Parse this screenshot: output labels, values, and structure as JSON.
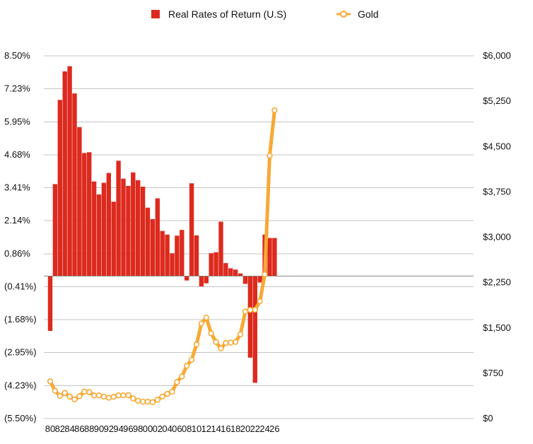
{
  "chart_data": {
    "type": "bar+line",
    "legend": {
      "placement": "top-center",
      "entries": [
        {
          "label": "Real Rates of Return (U.S)",
          "kind": "bar",
          "color": "#dd2a1e"
        },
        {
          "label": "Gold",
          "kind": "line",
          "color": "#f7a934"
        }
      ]
    },
    "x_tick_labels": [
      "80",
      "82",
      "84",
      "86",
      "88",
      "90",
      "92",
      "94",
      "96",
      "98",
      "00",
      "02",
      "04",
      "06",
      "08",
      "10",
      "12",
      "14",
      "16",
      "18",
      "20",
      "22",
      "24",
      "26"
    ],
    "left_axis": {
      "ticks": [
        8.5,
        7.23,
        5.95,
        4.68,
        3.41,
        2.14,
        0.86,
        -0.41,
        -1.68,
        -2.95,
        -4.23,
        -5.5
      ],
      "tick_labels": [
        "8.50%",
        "7.23%",
        "5.95%",
        "4.68%",
        "3.41%",
        "2.14%",
        "0.86%",
        "(0.41%)",
        "(1.68%)",
        "(2.95%)",
        "(4.23%)",
        "(5.50%)"
      ],
      "ylim": [
        -5.5,
        8.5
      ]
    },
    "right_axis": {
      "ticks": [
        6000,
        5250,
        4500,
        3750,
        3000,
        2250,
        1500,
        750,
        0
      ],
      "tick_labels": [
        "$6,000",
        "$5,250",
        "$4,500",
        "$3,750",
        "$3,000",
        "$2,250",
        "$1,500",
        "$750",
        "$0"
      ],
      "ylim": [
        0,
        6000
      ]
    },
    "grid": "horizontal",
    "series": [
      {
        "name": "Real Rates of Return (U.S)",
        "axis": "left",
        "type": "bar",
        "color": "#dd2a1e",
        "x": [
          1980,
          1981,
          1982,
          1983,
          1984,
          1985,
          1986,
          1987,
          1988,
          1989,
          1990,
          1991,
          1992,
          1993,
          1994,
          1995,
          1996,
          1997,
          1998,
          1999,
          2000,
          2001,
          2002,
          2003,
          2004,
          2005,
          2006,
          2007,
          2008,
          2009,
          2010,
          2011,
          2012,
          2013,
          2014,
          2015,
          2016,
          2017,
          2018,
          2019,
          2020,
          2021,
          2022,
          2023,
          2024,
          2025,
          2026
        ],
        "values": [
          -2.12,
          3.55,
          6.8,
          7.9,
          8.1,
          7.05,
          5.75,
          4.75,
          4.78,
          3.65,
          3.15,
          3.6,
          3.98,
          2.87,
          4.45,
          3.76,
          3.48,
          4.0,
          3.7,
          3.45,
          2.64,
          2.2,
          3.0,
          1.74,
          1.6,
          0.88,
          1.56,
          1.78,
          -0.17,
          3.58,
          1.57,
          -0.4,
          -0.28,
          0.88,
          0.92,
          2.1,
          0.5,
          0.3,
          0.25,
          0.1,
          -0.3,
          -3.15,
          -4.12,
          -0.25,
          1.6,
          1.47,
          1.47
        ]
      },
      {
        "name": "Gold",
        "axis": "right",
        "type": "line",
        "color": "#f7a934",
        "x": [
          1980,
          1981,
          1982,
          1983,
          1984,
          1985,
          1986,
          1987,
          1988,
          1989,
          1990,
          1991,
          1992,
          1993,
          1994,
          1995,
          1996,
          1997,
          1998,
          1999,
          2000,
          2001,
          2002,
          2003,
          2004,
          2005,
          2006,
          2007,
          2008,
          2009,
          2010,
          2011,
          2012,
          2013,
          2014,
          2015,
          2016,
          2017,
          2018,
          2019,
          2020,
          2021,
          2022,
          2023,
          2024,
          2025,
          2026
        ],
        "values": [
          615,
          460,
          375,
          424,
          361,
          317,
          368,
          447,
          437,
          381,
          383,
          362,
          344,
          360,
          384,
          384,
          388,
          331,
          294,
          279,
          279,
          271,
          310,
          363,
          409,
          444,
          604,
          696,
          872,
          972,
          1225,
          1572,
          1669,
          1411,
          1266,
          1160,
          1250,
          1257,
          1268,
          1393,
          1770,
          1798,
          1800,
          1940,
          2386,
          4350,
          5100
        ]
      }
    ]
  }
}
